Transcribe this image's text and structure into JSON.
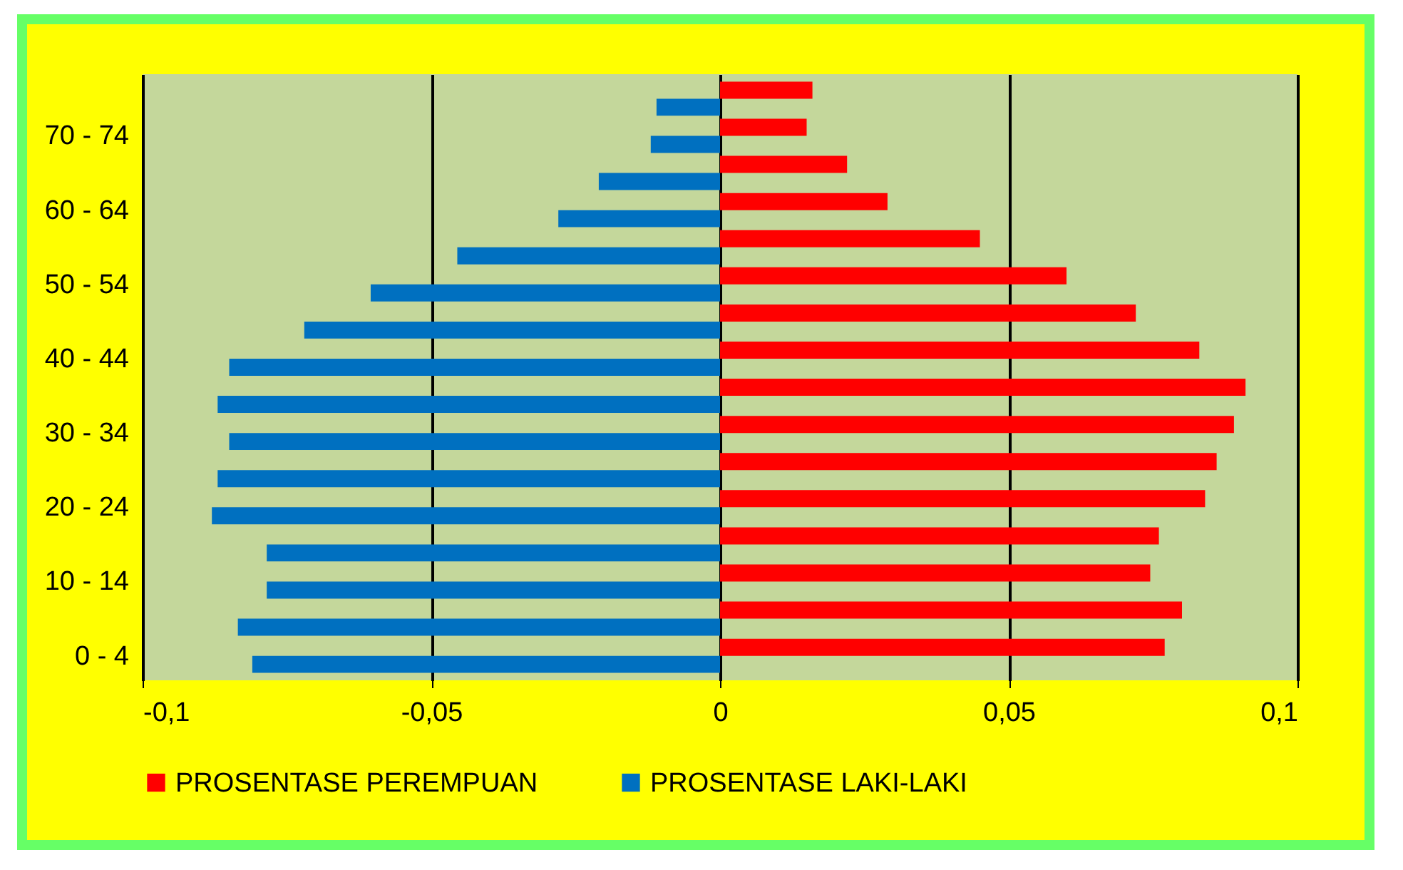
{
  "chart_data": {
    "type": "bar",
    "orientation": "horizontal",
    "categories": [
      null,
      "70 - 74",
      null,
      "60 - 64",
      null,
      "50 - 54",
      null,
      "40 - 44",
      null,
      "30 - 34",
      null,
      "20 - 24",
      null,
      "10 - 14",
      null,
      "0 - 4"
    ],
    "series": [
      {
        "name": "PROSENTASE  PEREMPUAN",
        "color": "#ff0000",
        "values": [
          0.016,
          0.015,
          0.022,
          0.029,
          0.045,
          0.06,
          0.072,
          0.083,
          0.091,
          0.089,
          0.086,
          0.084,
          0.076,
          0.0745,
          0.08,
          0.077
        ]
      },
      {
        "name": "PROSENTASE LAKI-LAKI",
        "color": "#0070c0",
        "values": [
          -0.011,
          -0.012,
          -0.021,
          -0.028,
          -0.0455,
          -0.0605,
          -0.072,
          -0.085,
          -0.087,
          -0.085,
          -0.087,
          -0.088,
          -0.0785,
          -0.0785,
          -0.0835,
          -0.081
        ]
      }
    ],
    "xlim": [
      -0.1,
      0.1
    ],
    "xticks": [
      {
        "value": -0.1,
        "label": "-0,1"
      },
      {
        "value": -0.05,
        "label": "-0,05"
      },
      {
        "value": 0,
        "label": "0"
      },
      {
        "value": 0.05,
        "label": "0,05"
      },
      {
        "value": 0.1,
        "label": "0,1"
      }
    ],
    "grid": "x",
    "legend": "bottom"
  }
}
